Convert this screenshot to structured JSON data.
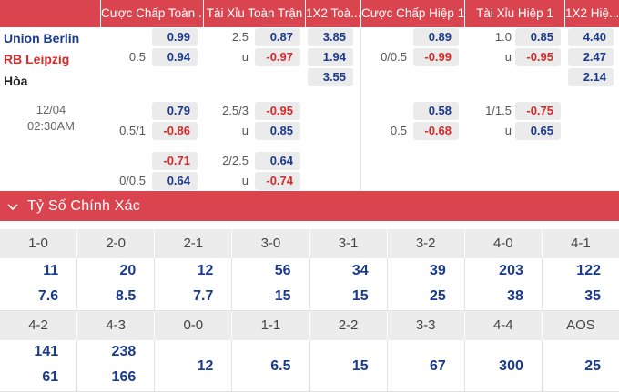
{
  "headers": {
    "ft_handicap": "Cược Chấp Toàn ...",
    "ft_overunder": "Tài Xỉu Toàn Trận",
    "ft_1x2": "1X2 Toà...",
    "h1_handicap": "Cược Chấp Hiệp 1",
    "h1_overunder": "Tài Xỉu Hiệp 1",
    "h1_1x2": "1X2 Hiệ..."
  },
  "teams": {
    "home": "Union Berlin",
    "away": "RB Leipzig",
    "draw": "Hòa"
  },
  "match": {
    "date": "12/04",
    "time": "02:30AM"
  },
  "rows": [
    {
      "ft_hdp": {
        "line_home": "",
        "line_away": "0.5",
        "home": "0.99",
        "away": "0.94"
      },
      "ft_ou": {
        "line": "2.5",
        "under_label": "u",
        "over": "0.87",
        "under": "-0.97"
      },
      "ft_1x2": {
        "home": "3.85",
        "away": "1.94",
        "draw": "3.55"
      },
      "h1_hdp": {
        "line_home": "",
        "line_away": "0/0.5",
        "home": "0.89",
        "away": "-0.99"
      },
      "h1_ou": {
        "line": "1.0",
        "under_label": "u",
        "over": "0.85",
        "under": "-0.95"
      },
      "h1_1x2": {
        "home": "4.40",
        "away": "2.47",
        "draw": "2.14"
      }
    },
    {
      "ft_hdp": {
        "line_home": "",
        "line_away": "0.5/1",
        "home": "0.79",
        "away": "-0.86"
      },
      "ft_ou": {
        "line": "2.5/3",
        "under_label": "u",
        "over": "-0.95",
        "under": "0.85"
      },
      "h1_hdp": {
        "line_home": "",
        "line_away": "0.5",
        "home": "0.58",
        "away": "-0.68"
      },
      "h1_ou": {
        "line": "1/1.5",
        "under_label": "u",
        "over": "-0.75",
        "under": "0.65"
      }
    },
    {
      "ft_hdp": {
        "line_home": "",
        "line_away": "0/0.5",
        "home": "-0.71",
        "away": "0.64"
      },
      "ft_ou": {
        "line": "2/2.5",
        "under_label": "u",
        "over": "0.64",
        "under": "-0.74"
      }
    }
  ],
  "exact_score": {
    "title": "Tỷ Số Chính Xác",
    "row1": {
      "labels": [
        "1-0",
        "2-0",
        "2-1",
        "3-0",
        "3-1",
        "3-2",
        "4-0",
        "4-1"
      ],
      "home": [
        "11",
        "20",
        "12",
        "56",
        "34",
        "39",
        "203",
        "122"
      ],
      "away": [
        "7.6",
        "8.5",
        "7.7",
        "15",
        "15",
        "25",
        "38",
        "35"
      ]
    },
    "row2": {
      "labels": [
        "4-2",
        "4-3",
        "0-0",
        "1-1",
        "2-2",
        "3-3",
        "4-4",
        "AOS"
      ],
      "home": [
        "141",
        "238",
        "12",
        "6.5",
        "15",
        "67",
        "300",
        "25"
      ],
      "away": [
        "61",
        "166",
        "",
        "",
        "",
        "",
        "",
        ""
      ]
    }
  },
  "colors": {
    "accent": "#d9444e",
    "positive": "#1a3a8f",
    "negative": "#d42a2a"
  }
}
